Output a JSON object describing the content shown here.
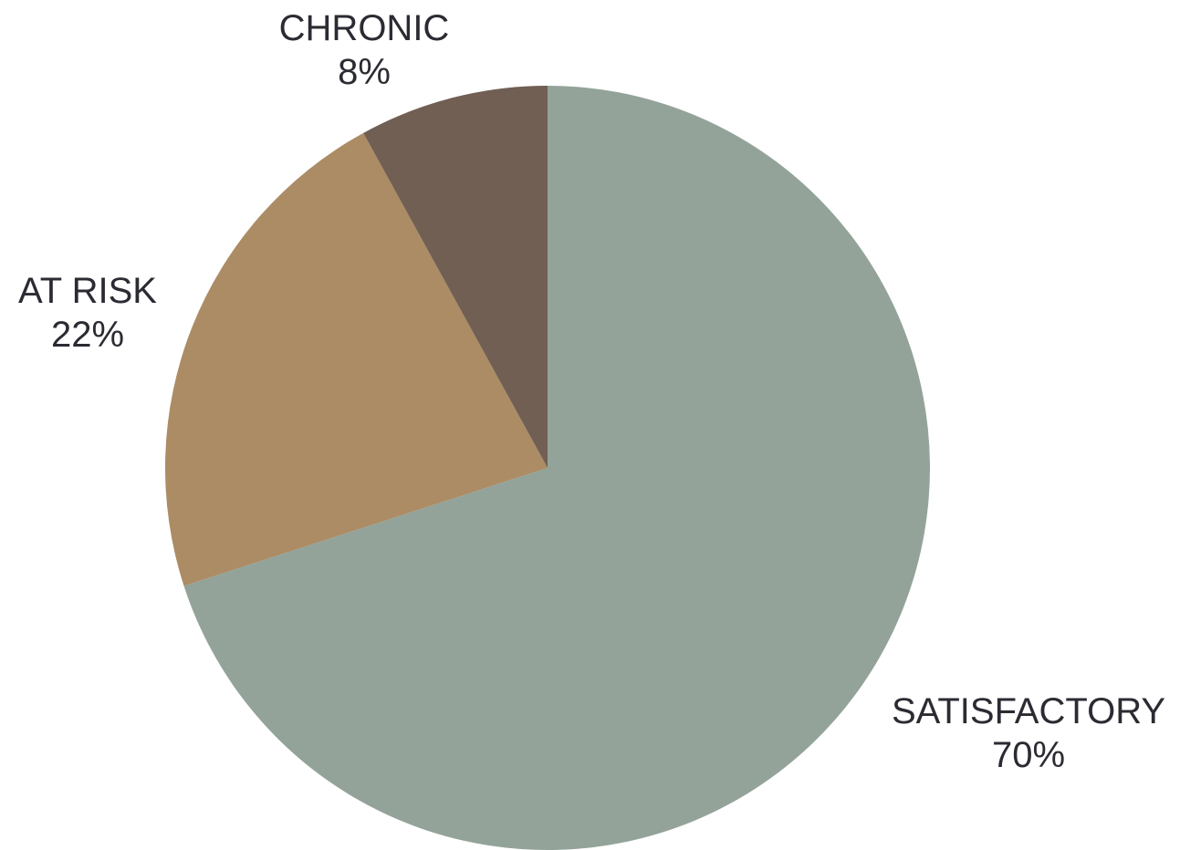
{
  "chart_data": {
    "type": "pie",
    "slices": [
      {
        "label": "SATISFACTORY",
        "value": 70,
        "value_label": "70%",
        "color": "#93a399"
      },
      {
        "label": "AT RISK",
        "value": 22,
        "value_label": "22%",
        "color": "#ab8c65"
      },
      {
        "label": "CHRONIC",
        "value": 8,
        "value_label": "8%",
        "color": "#715f54"
      }
    ],
    "start": "12 o'clock",
    "direction": "clockwise",
    "labels_outside": true
  }
}
